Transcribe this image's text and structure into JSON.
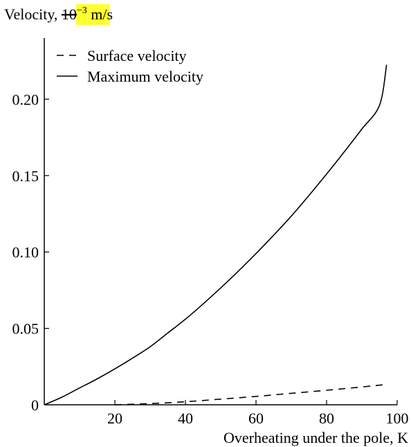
{
  "chart_data": {
    "type": "line",
    "title": {
      "prefix": "Velocity, ",
      "base": "10",
      "exponent": "−3",
      "suffix": " m/s",
      "highlight_color": "#ffff33"
    },
    "xlabel": "Overheating under the pole, K",
    "ylabel": "",
    "xlim": [
      0,
      100
    ],
    "ylim": [
      0,
      0.24
    ],
    "x_ticks": [
      20,
      40,
      60,
      80,
      100
    ],
    "x_tick_labels": [
      "20",
      "40",
      "60",
      "80",
      "100"
    ],
    "y_ticks": [
      0,
      0.05,
      0.1,
      0.15,
      0.2
    ],
    "y_tick_labels": [
      "0",
      "0.05",
      "0.10",
      "0.15",
      "0.20"
    ],
    "grid": false,
    "legend_position": "top-left",
    "series": [
      {
        "name": "Surface velocity",
        "style": "dashed",
        "color": "#000000",
        "x": [
          20,
          30,
          40,
          50,
          60,
          70,
          80,
          90,
          97
        ],
        "y": [
          0.0,
          0.0008,
          0.002,
          0.0037,
          0.0055,
          0.0075,
          0.0095,
          0.0117,
          0.0133
        ]
      },
      {
        "name": "Maximum velocity",
        "style": "solid",
        "color": "#000000",
        "x": [
          0,
          5,
          10,
          15,
          20,
          25,
          30,
          35,
          40,
          45,
          50,
          55,
          60,
          65,
          70,
          75,
          80,
          85,
          90,
          95,
          97
        ],
        "y": [
          0,
          0.005,
          0.011,
          0.017,
          0.0235,
          0.0305,
          0.038,
          0.047,
          0.056,
          0.066,
          0.0765,
          0.0875,
          0.099,
          0.111,
          0.1235,
          0.137,
          0.151,
          0.1655,
          0.1805,
          0.196,
          0.2225
        ]
      }
    ]
  }
}
